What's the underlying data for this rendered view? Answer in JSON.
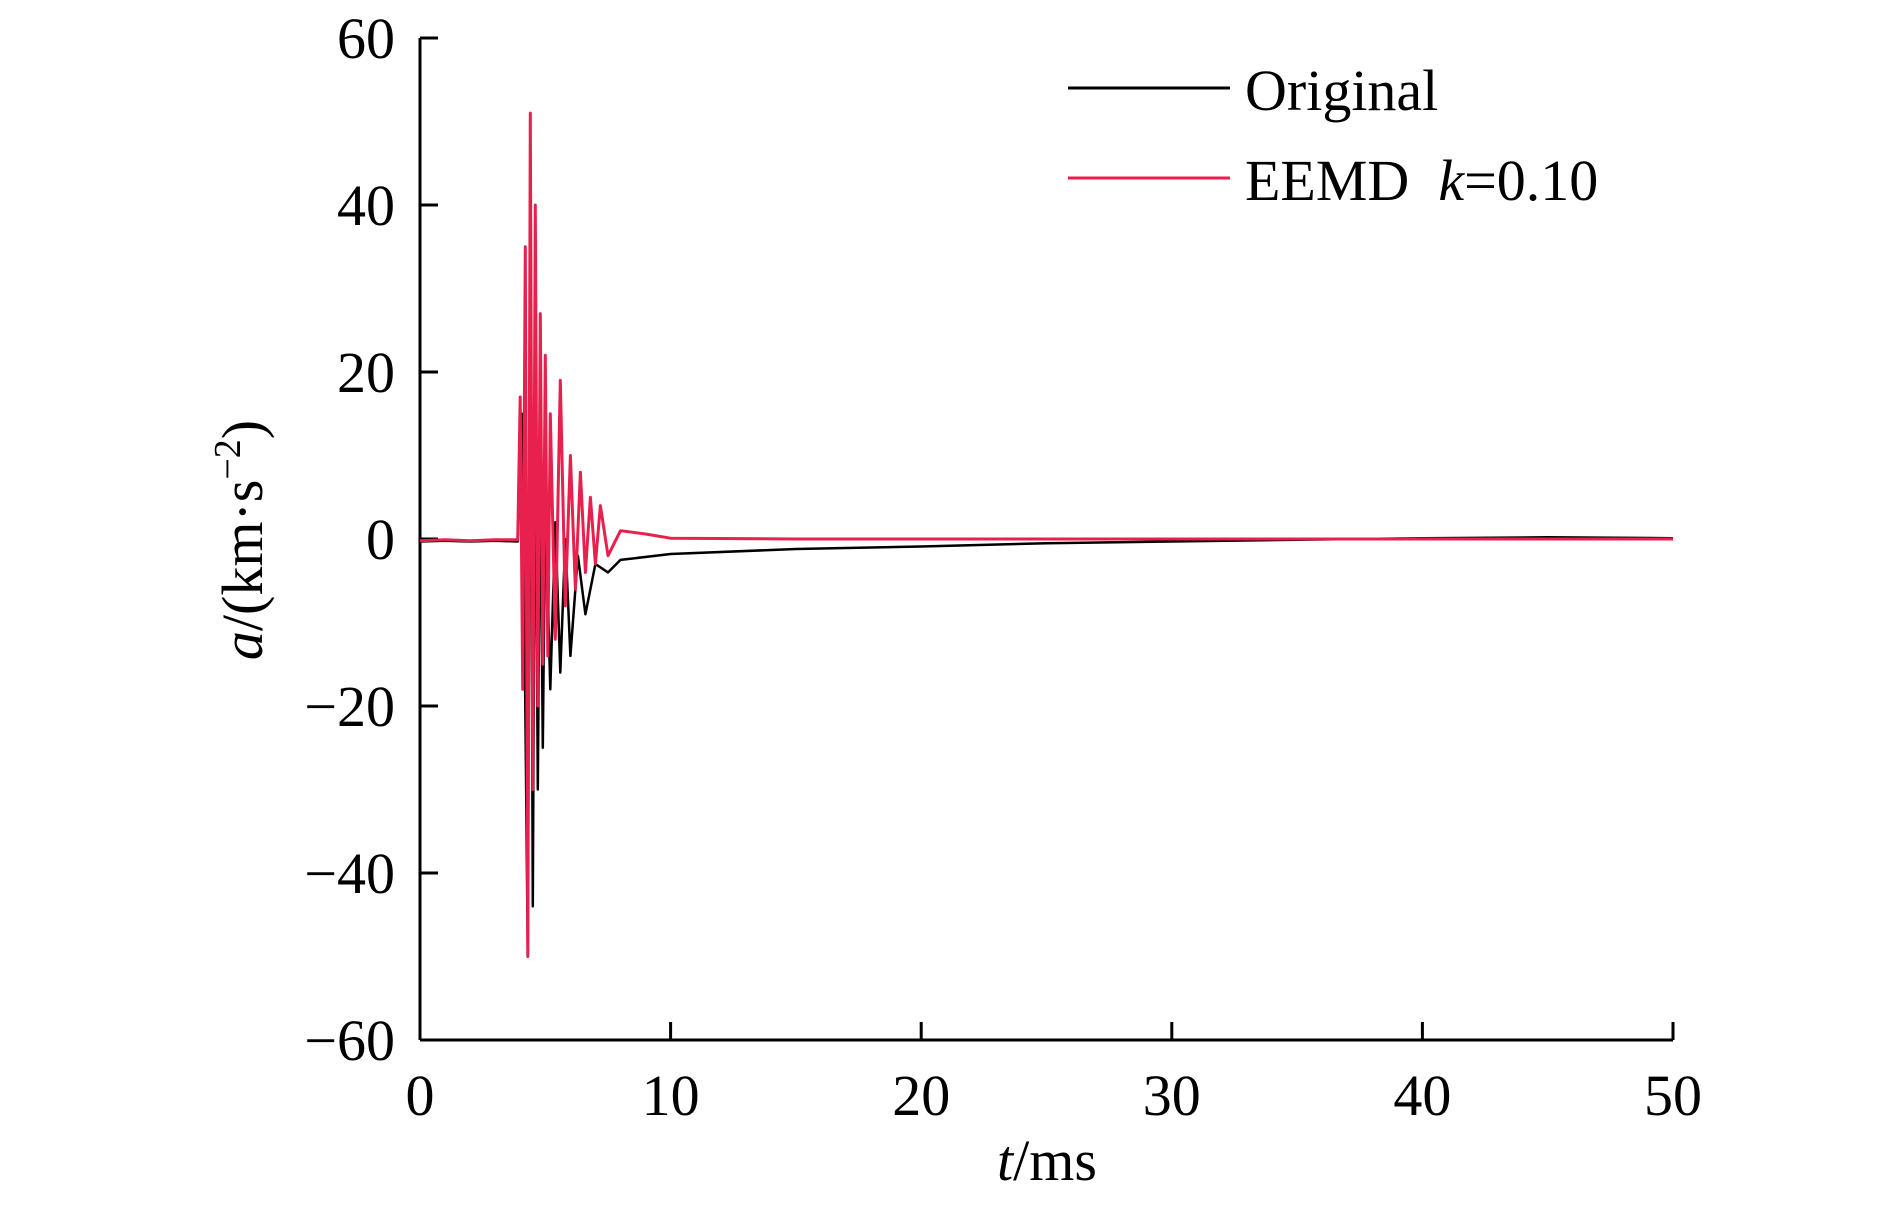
{
  "chart_data": {
    "type": "line",
    "title": "",
    "xlabel": {
      "italic": "t",
      "rest": "/ms"
    },
    "ylabel": {
      "italic": "a",
      "rest": "/(km·s",
      "sup": "−2",
      "close": ")"
    },
    "xlim": [
      0,
      50
    ],
    "ylim": [
      -60,
      60
    ],
    "xticks": [
      0,
      10,
      20,
      30,
      40,
      50
    ],
    "yticks": [
      -60,
      -40,
      -20,
      0,
      20,
      40,
      60
    ],
    "xtick_labels": [
      "0",
      "10",
      "20",
      "30",
      "40",
      "50"
    ],
    "ytick_labels": [
      "−60",
      "−40",
      "−20",
      "0",
      "20",
      "40",
      "60"
    ],
    "grid": false,
    "legend_position": "top-right",
    "legend": {
      "original": "Original",
      "eemd": {
        "prefix": "EEMD  ",
        "italic": "k",
        "suffix": "=0.10"
      }
    },
    "series": [
      {
        "name": "Original",
        "color": "#000000",
        "points": [
          [
            0,
            -0.3
          ],
          [
            1,
            -0.2
          ],
          [
            2,
            -0.3
          ],
          [
            3,
            -0.2
          ],
          [
            3.9,
            -0.3
          ],
          [
            4.1,
            15
          ],
          [
            4.2,
            -20
          ],
          [
            4.3,
            -50
          ],
          [
            4.4,
            35
          ],
          [
            4.5,
            -44
          ],
          [
            4.6,
            20
          ],
          [
            4.7,
            -30
          ],
          [
            4.8,
            10
          ],
          [
            4.9,
            -25
          ],
          [
            5.0,
            5
          ],
          [
            5.2,
            -18
          ],
          [
            5.4,
            2
          ],
          [
            5.6,
            -16
          ],
          [
            5.8,
            0
          ],
          [
            6.0,
            -14
          ],
          [
            6.3,
            -2
          ],
          [
            6.6,
            -9
          ],
          [
            7.0,
            -3
          ],
          [
            7.5,
            -4
          ],
          [
            8,
            -2.5
          ],
          [
            10,
            -1.8
          ],
          [
            15,
            -1.2
          ],
          [
            20,
            -0.9
          ],
          [
            25,
            -0.5
          ],
          [
            30,
            -0.3
          ],
          [
            35,
            -0.1
          ],
          [
            40,
            0.1
          ],
          [
            45,
            0.2
          ],
          [
            50,
            0.1
          ]
        ]
      },
      {
        "name": "EEMD  k=0.10",
        "color": "#e8204d",
        "points": [
          [
            0,
            -0.2
          ],
          [
            1,
            -0.1
          ],
          [
            2,
            -0.2
          ],
          [
            3,
            -0.1
          ],
          [
            3.9,
            -0.1
          ],
          [
            4.0,
            17
          ],
          [
            4.1,
            -18
          ],
          [
            4.2,
            35
          ],
          [
            4.3,
            -50
          ],
          [
            4.4,
            51
          ],
          [
            4.5,
            -30
          ],
          [
            4.6,
            40
          ],
          [
            4.7,
            -20
          ],
          [
            4.8,
            27
          ],
          [
            4.9,
            -15
          ],
          [
            5.0,
            22
          ],
          [
            5.1,
            -14
          ],
          [
            5.2,
            15
          ],
          [
            5.4,
            -12
          ],
          [
            5.6,
            19
          ],
          [
            5.8,
            -8
          ],
          [
            6.0,
            10
          ],
          [
            6.2,
            -6
          ],
          [
            6.4,
            8
          ],
          [
            6.6,
            -4
          ],
          [
            6.8,
            5
          ],
          [
            7.0,
            -3
          ],
          [
            7.2,
            4
          ],
          [
            7.5,
            -2
          ],
          [
            8,
            1
          ],
          [
            9,
            0.6
          ],
          [
            10,
            0.1
          ],
          [
            15,
            0
          ],
          [
            20,
            0
          ],
          [
            30,
            0
          ],
          [
            40,
            0
          ],
          [
            50,
            0
          ]
        ]
      }
    ]
  }
}
